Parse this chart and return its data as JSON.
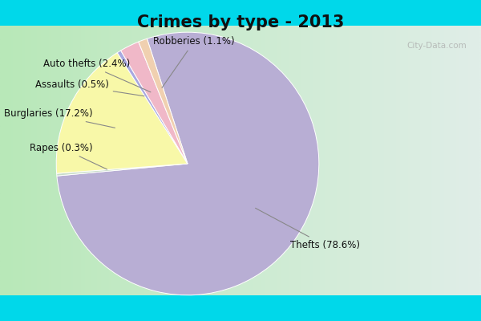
{
  "title": "Crimes by type - 2013",
  "title_fontsize": 15,
  "slices": [
    {
      "label": "Thefts",
      "pct": 78.6,
      "color": "#b8aed4"
    },
    {
      "label": "Rapes",
      "pct": 0.3,
      "color": "#c8dcc8"
    },
    {
      "label": "Burglaries",
      "pct": 17.2,
      "color": "#f8f8a8"
    },
    {
      "label": "Assaults",
      "pct": 0.5,
      "color": "#a8a8e0"
    },
    {
      "label": "Auto thefts",
      "pct": 2.4,
      "color": "#f0b8c8"
    },
    {
      "label": "Robberies",
      "pct": 1.1,
      "color": "#f0d0b0"
    }
  ],
  "startangle": 108,
  "counterclock": false,
  "bg_cyan": "#00d8ea",
  "bg_grad_left": "#b8e8b8",
  "bg_grad_right": "#e0eee8",
  "watermark": "City-Data.com",
  "label_fontsize": 8.5,
  "annotations": [
    {
      "label": "Thefts (78.6%)",
      "idx": 0,
      "xt": 0.78,
      "yt": -0.62,
      "ha": "left",
      "va": "center"
    },
    {
      "label": "Rapes (0.3%)",
      "idx": 1,
      "xt": -0.72,
      "yt": 0.12,
      "ha": "right",
      "va": "center"
    },
    {
      "label": "Burglaries (17.2%)",
      "idx": 2,
      "xt": -0.72,
      "yt": 0.38,
      "ha": "right",
      "va": "center"
    },
    {
      "label": "Assaults (0.5%)",
      "idx": 3,
      "xt": -0.6,
      "yt": 0.6,
      "ha": "right",
      "va": "center"
    },
    {
      "label": "Auto thefts (2.4%)",
      "idx": 4,
      "xt": -0.44,
      "yt": 0.76,
      "ha": "right",
      "va": "center"
    },
    {
      "label": "Robberies (1.1%)",
      "idx": 5,
      "xt": 0.05,
      "yt": 0.93,
      "ha": "center",
      "va": "center"
    }
  ]
}
